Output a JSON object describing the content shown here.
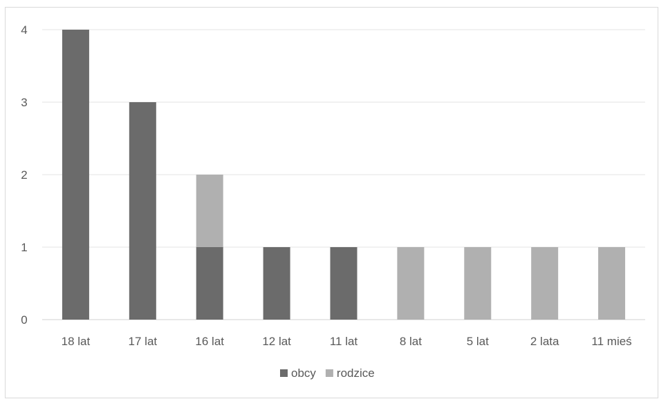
{
  "chart_data": {
    "type": "bar",
    "stacked": true,
    "categories": [
      "18 lat",
      "17 lat",
      "16 lat",
      "12 lat",
      "11 lat",
      "8 lat",
      "5 lat",
      "2 lata",
      "11 mieś"
    ],
    "series": [
      {
        "name": "obcy",
        "values": [
          4,
          3,
          1,
          1,
          1,
          0,
          0,
          0,
          0
        ],
        "color": "#6b6b6b"
      },
      {
        "name": "rodzice",
        "values": [
          0,
          0,
          1,
          0,
          0,
          1,
          1,
          1,
          1
        ],
        "color": "#b0b0b0"
      }
    ],
    "yticks": [
      "0",
      "1",
      "2",
      "3",
      "4"
    ],
    "ylim": [
      0,
      4
    ],
    "grid": true,
    "legend_position": "bottom"
  }
}
